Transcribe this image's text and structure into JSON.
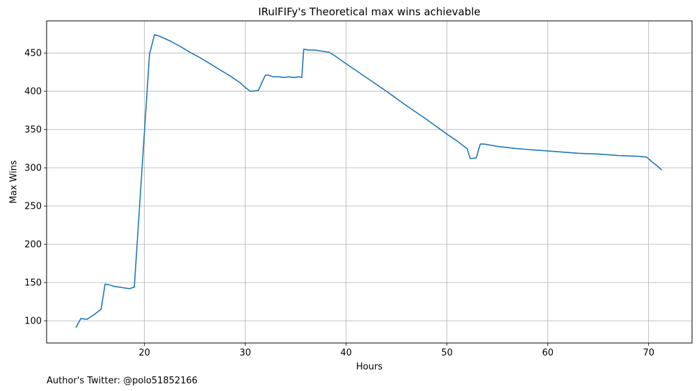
{
  "chart_data": {
    "type": "line",
    "title": "IRulFIFy's Theoretical max wins achievable",
    "xlabel": "Hours",
    "ylabel": "Max Wins",
    "xlim": [
      10.3,
      74.3
    ],
    "ylim": [
      71,
      492
    ],
    "xticks": [
      20,
      30,
      40,
      50,
      60,
      70
    ],
    "yticks": [
      100,
      150,
      200,
      250,
      300,
      350,
      400,
      450
    ],
    "grid": true,
    "line_color": "#1f77b4",
    "footnote": "Author's Twitter: @polo51852166",
    "series": [
      {
        "x": [
          13.2,
          13.7,
          14.3,
          15.0,
          15.7,
          16.1,
          16.5,
          17.0,
          18.0,
          18.5,
          19.0,
          20.5,
          21.0,
          21.5,
          22.5,
          23.5,
          24.5,
          25.5,
          26.5,
          27.5,
          28.5,
          29.5,
          30.0,
          30.5,
          31.3,
          31.7,
          32.0,
          32.3,
          32.7,
          33.3,
          33.8,
          34.3,
          34.8,
          35.3,
          35.6,
          35.8,
          36.2,
          36.8,
          37.3,
          37.8,
          38.3,
          38.7,
          40.0,
          42.0,
          44.0,
          46.0,
          48.0,
          50.0,
          51.0,
          52.0,
          52.3,
          52.9,
          53.3,
          53.7,
          55.0,
          57.0,
          59.0,
          61.0,
          63.0,
          65.0,
          67.0,
          69.0,
          69.8,
          70.3,
          70.8,
          71.3
        ],
        "y": [
          91,
          103,
          102,
          108,
          115,
          148,
          147,
          145,
          143,
          142,
          144,
          448,
          474,
          472,
          466,
          459,
          451,
          444,
          436,
          428,
          420,
          411,
          405,
          400,
          401,
          413,
          421,
          421,
          419,
          419,
          418,
          419,
          418,
          419,
          418,
          455,
          454,
          454,
          453,
          452,
          451,
          448,
          436,
          418,
          400,
          381,
          363,
          344,
          335,
          325,
          312,
          313,
          331,
          331,
          328,
          325,
          323,
          321,
          319,
          318,
          316,
          315,
          314,
          308,
          303,
          297
        ]
      }
    ]
  }
}
